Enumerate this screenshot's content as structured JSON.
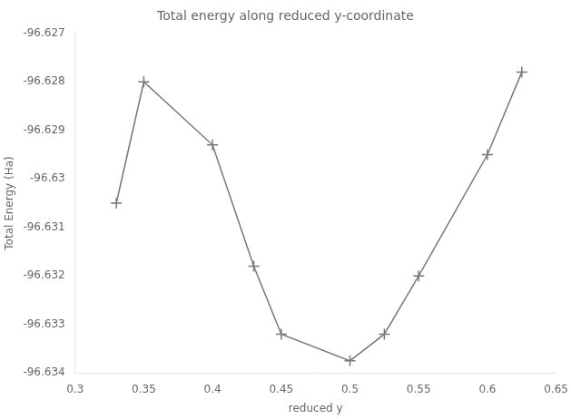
{
  "chart_data": {
    "type": "line",
    "title": "Total energy along reduced y-coordinate",
    "xlabel": "reduced y",
    "ylabel": "Total Energy (Ha)",
    "x": [
      0.33,
      0.35,
      0.4,
      0.43,
      0.45,
      0.5,
      0.525,
      0.55,
      0.6,
      0.625
    ],
    "values": [
      -96.6305,
      -96.628,
      -96.6293,
      -96.6318,
      -96.6332,
      -96.63375,
      -96.6332,
      -96.632,
      -96.6295,
      -96.6278
    ],
    "color": "#777777",
    "marker": "plus",
    "xlim": [
      0.3,
      0.65
    ],
    "ylim": [
      -96.634,
      -96.627
    ],
    "xticks": [
      0.3,
      0.35,
      0.4,
      0.45,
      0.5,
      0.55,
      0.6,
      0.65
    ],
    "yticks": [
      -96.627,
      -96.628,
      -96.629,
      -96.63,
      -96.631,
      -96.632,
      -96.633,
      -96.634
    ],
    "grid": false
  }
}
